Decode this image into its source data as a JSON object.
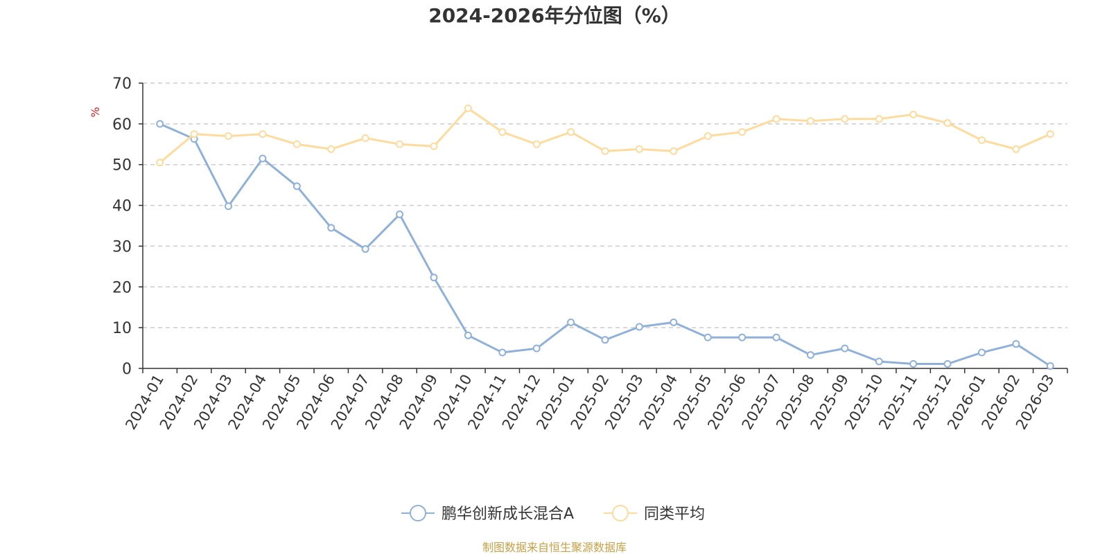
{
  "chart_data": {
    "type": "line",
    "title": "2024-2026年分位图（%）",
    "ylabel": "%",
    "xlabel": "",
    "ylim": [
      0,
      70
    ],
    "yticks": [
      0,
      10,
      20,
      30,
      40,
      50,
      60,
      70
    ],
    "grid": true,
    "legend_position": "bottom-center",
    "categories": [
      "2024-01",
      "2024-02",
      "2024-03",
      "2024-04",
      "2024-05",
      "2024-06",
      "2024-07",
      "2024-08",
      "2024-09",
      "2024-10",
      "2024-11",
      "2024-12",
      "2025-01",
      "2025-02",
      "2025-03",
      "2025-04",
      "2025-05",
      "2025-06",
      "2025-07",
      "2025-08",
      "2025-09",
      "2025-10",
      "2025-11",
      "2025-12",
      "2026-01",
      "2026-02",
      "2026-03"
    ],
    "series": [
      {
        "name": "鹏华创新成长混合A",
        "color": "#8eb0d9",
        "values": [
          60,
          56.3,
          39.8,
          51.5,
          44.7,
          34.5,
          29.3,
          37.8,
          22.3,
          8.1,
          3.9,
          4.9,
          11.3,
          7.0,
          10.2,
          11.3,
          7.6,
          7.6,
          7.6,
          3.3,
          4.9,
          1.7,
          1.1,
          1.1,
          3.9,
          6.0,
          0.6
        ]
      },
      {
        "name": "同类平均",
        "color": "#fddb9c",
        "values": [
          50.5,
          57.5,
          57.0,
          57.5,
          55.0,
          53.8,
          56.5,
          55.0,
          54.5,
          63.8,
          58.0,
          55.0,
          58.0,
          53.3,
          53.8,
          53.3,
          57.0,
          58.0,
          61.2,
          60.7,
          61.2,
          61.2,
          62.3,
          60.2,
          56.0,
          53.8,
          57.5
        ]
      }
    ]
  },
  "footer": {
    "source": "制图数据来自恒生聚源数据库",
    "source_color": "#c8a046"
  }
}
